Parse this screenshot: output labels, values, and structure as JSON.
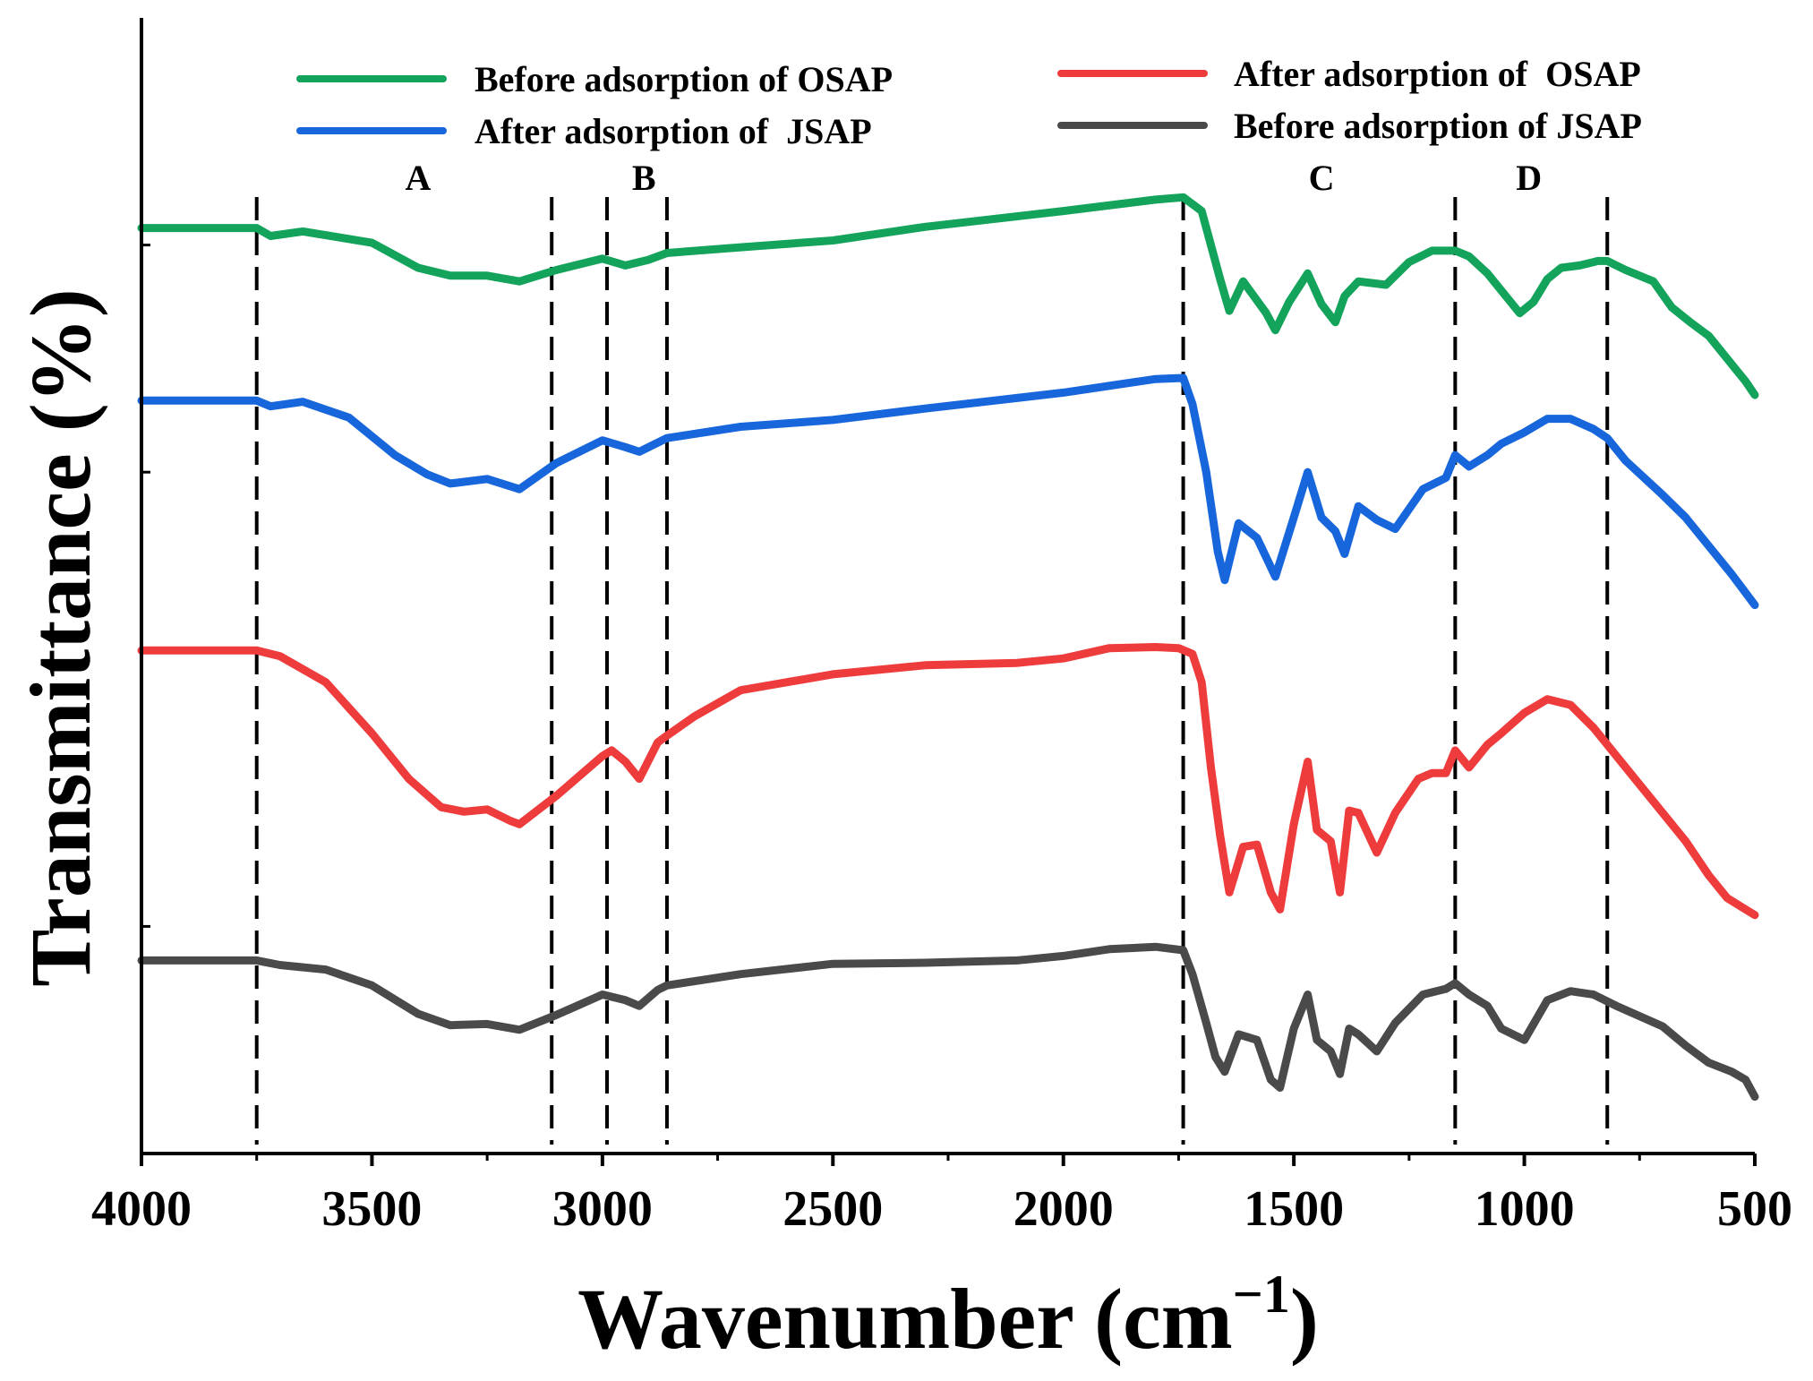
{
  "chart_data": {
    "type": "line",
    "title": "",
    "xlabel": "Wavenumber (cm",
    "xlabel_sup": "−1",
    "xlabel_close": ")",
    "ylabel": "Transmittance (%)",
    "xlim": [
      4000,
      500
    ],
    "ylim": [
      0,
      100
    ],
    "x_ticks": [
      4000,
      3500,
      3000,
      2500,
      2000,
      1500,
      1000,
      500
    ],
    "x_tick_labels": [
      "4000",
      "3500",
      "3000",
      "2500",
      "2000",
      "1500",
      "1000",
      "500"
    ],
    "y_ticks": [
      20,
      60,
      80
    ],
    "legend_position": "top",
    "reference_lines": [
      3750,
      3110,
      2990,
      2860,
      1740,
      1150,
      820
    ],
    "region_labels": [
      {
        "text": "A",
        "x": 3400
      },
      {
        "text": "B",
        "x": 2910
      },
      {
        "text": "C",
        "x": 1440
      },
      {
        "text": "D",
        "x": 990
      }
    ],
    "series": [
      {
        "name": "Before adsorption of OSAP",
        "color": "#13a35a",
        "x": [
          4000,
          3750,
          3720,
          3650,
          3500,
          3400,
          3330,
          3250,
          3180,
          3100,
          3000,
          2950,
          2900,
          2860,
          2700,
          2500,
          2300,
          2000,
          1800,
          1740,
          1700,
          1660,
          1640,
          1610,
          1560,
          1540,
          1510,
          1470,
          1440,
          1410,
          1390,
          1360,
          1300,
          1250,
          1200,
          1150,
          1120,
          1080,
          1040,
          1010,
          980,
          950,
          920,
          880,
          840,
          820,
          780,
          720,
          680,
          640,
          600,
          560,
          520,
          500
        ],
        "y": [
          81.5,
          81.5,
          80.8,
          81.2,
          80.2,
          78.0,
          77.3,
          77.3,
          76.8,
          77.8,
          78.8,
          78.2,
          78.7,
          79.3,
          79.8,
          80.4,
          81.6,
          83.0,
          84.0,
          84.2,
          83.0,
          77.0,
          74.2,
          76.8,
          74.0,
          72.5,
          75.0,
          77.5,
          74.8,
          73.2,
          75.5,
          76.8,
          76.5,
          78.5,
          79.5,
          79.5,
          79.0,
          77.5,
          75.5,
          74.0,
          75.0,
          77.0,
          78.0,
          78.2,
          78.6,
          78.6,
          77.8,
          76.8,
          74.5,
          73.2,
          72.0,
          70.0,
          68.0,
          66.8
        ]
      },
      {
        "name": "After adsorption of  JSAP",
        "color": "#1766dc",
        "x": [
          4000,
          3750,
          3720,
          3650,
          3550,
          3450,
          3380,
          3330,
          3250,
          3180,
          3100,
          3000,
          2950,
          2920,
          2860,
          2700,
          2500,
          2300,
          2000,
          1800,
          1740,
          1720,
          1690,
          1665,
          1650,
          1620,
          1580,
          1540,
          1500,
          1470,
          1440,
          1410,
          1390,
          1360,
          1320,
          1280,
          1220,
          1170,
          1150,
          1120,
          1080,
          1050,
          1000,
          950,
          900,
          850,
          820,
          780,
          700,
          650,
          600,
          550,
          500
        ],
        "y": [
          66.3,
          66.3,
          65.8,
          66.2,
          64.8,
          61.5,
          59.8,
          59.0,
          59.4,
          58.5,
          60.8,
          62.8,
          62.2,
          61.8,
          63.0,
          64.0,
          64.6,
          65.6,
          67.0,
          68.2,
          68.3,
          66.0,
          60.0,
          53.0,
          50.5,
          55.5,
          54.2,
          50.8,
          56.0,
          60.0,
          56.0,
          54.8,
          52.8,
          57.0,
          55.8,
          55.0,
          58.5,
          59.5,
          61.5,
          60.5,
          61.5,
          62.5,
          63.5,
          64.7,
          64.7,
          63.8,
          63.0,
          61.0,
          58.0,
          56.0,
          53.5,
          51.0,
          48.3
        ]
      },
      {
        "name": "After adsorption of  OSAP",
        "color": "#ee3b3b",
        "x": [
          4000,
          3750,
          3700,
          3600,
          3500,
          3420,
          3350,
          3300,
          3250,
          3200,
          3180,
          3100,
          3000,
          2980,
          2950,
          2920,
          2880,
          2860,
          2800,
          2700,
          2500,
          2300,
          2100,
          2000,
          1900,
          1800,
          1750,
          1720,
          1700,
          1680,
          1660,
          1640,
          1610,
          1580,
          1550,
          1530,
          1500,
          1470,
          1450,
          1420,
          1400,
          1380,
          1360,
          1320,
          1280,
          1230,
          1200,
          1170,
          1150,
          1120,
          1080,
          1050,
          1000,
          950,
          900,
          850,
          800,
          700,
          650,
          600,
          560,
          520,
          500
        ],
        "y": [
          44.3,
          44.3,
          43.8,
          41.5,
          37.0,
          33.0,
          30.5,
          30.1,
          30.3,
          29.3,
          29.0,
          31.5,
          35.0,
          35.5,
          34.5,
          33.0,
          36.2,
          36.8,
          38.5,
          40.8,
          42.2,
          43.0,
          43.2,
          43.6,
          44.5,
          44.6,
          44.5,
          44.0,
          41.5,
          34.0,
          28.0,
          23.0,
          27.0,
          27.2,
          23.0,
          21.5,
          29.0,
          34.5,
          28.5,
          27.5,
          23.0,
          30.2,
          30.0,
          26.5,
          30.0,
          33.0,
          33.5,
          33.5,
          35.5,
          34.0,
          36.0,
          37.0,
          38.8,
          40.0,
          39.5,
          37.5,
          35.0,
          30.0,
          27.5,
          24.5,
          22.5,
          21.5,
          21.0
        ]
      },
      {
        "name": "Before adsorption of JSAP",
        "color": "#4a4a4a",
        "x": [
          4000,
          3750,
          3700,
          3600,
          3500,
          3400,
          3330,
          3250,
          3180,
          3100,
          3000,
          2950,
          2920,
          2880,
          2860,
          2700,
          2500,
          2300,
          2100,
          2000,
          1900,
          1800,
          1740,
          1720,
          1690,
          1670,
          1650,
          1620,
          1580,
          1550,
          1530,
          1500,
          1470,
          1450,
          1420,
          1400,
          1380,
          1360,
          1320,
          1280,
          1220,
          1170,
          1150,
          1120,
          1080,
          1050,
          1000,
          950,
          900,
          850,
          800,
          700,
          650,
          600,
          550,
          520,
          500
        ],
        "y": [
          17.0,
          17.0,
          16.6,
          16.2,
          14.8,
          12.3,
          11.3,
          11.4,
          10.9,
          12.2,
          14.0,
          13.5,
          13.0,
          14.4,
          14.8,
          15.8,
          16.7,
          16.8,
          17.0,
          17.4,
          18.0,
          18.2,
          17.9,
          15.8,
          11.5,
          8.5,
          7.2,
          10.5,
          10.0,
          6.5,
          5.8,
          11.0,
          14.0,
          10.0,
          9.0,
          7.0,
          11.0,
          10.5,
          9.0,
          11.5,
          14.0,
          14.5,
          15.0,
          14.0,
          13.0,
          11.0,
          10.0,
          13.5,
          14.3,
          14.0,
          13.0,
          11.2,
          9.5,
          8.0,
          7.2,
          6.5,
          5.0
        ]
      }
    ]
  }
}
